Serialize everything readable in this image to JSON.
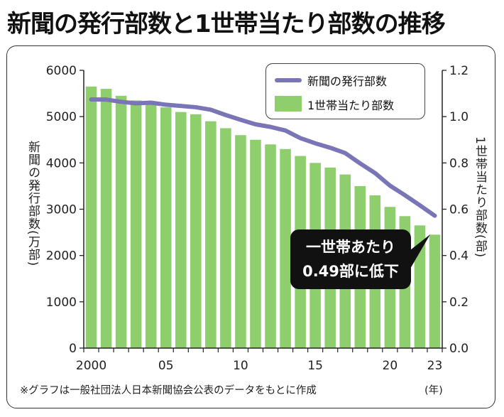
{
  "title": "新聞の発行部数と1世帯当たり部数の推移",
  "note": "※グラフは一般社団法人日本新聞協会公表のデータをもとに作成",
  "x_unit": "(年)",
  "left_axis_label": "新聞の発行部数(万部)",
  "right_axis_label": "1世帯当たり部数(部)",
  "callout": {
    "line1": "一世帯あたり",
    "line2": "0.49部に低下"
  },
  "legend": {
    "line_label": "新聞の発行部数",
    "bar_label": "1世帯当たり部数"
  },
  "colors": {
    "line": "#7a75b7",
    "bar": "#8fce6c"
  },
  "chart_data": {
    "type": "bar",
    "title": "新聞の発行部数と1世帯当たり部数の推移",
    "xlabel": "(年)",
    "x": [
      2000,
      2001,
      2002,
      2003,
      2004,
      2005,
      2006,
      2007,
      2008,
      2009,
      2010,
      2011,
      2012,
      2013,
      2014,
      2015,
      2016,
      2017,
      2018,
      2019,
      2020,
      2021,
      2022,
      2023
    ],
    "x_tick_labels": [
      {
        "year": 2000,
        "label": "2000"
      },
      {
        "year": 2005,
        "label": "05"
      },
      {
        "year": 2010,
        "label": "10"
      },
      {
        "year": 2015,
        "label": "15"
      },
      {
        "year": 2020,
        "label": "20"
      },
      {
        "year": 2023,
        "label": "23"
      }
    ],
    "y_left": {
      "label": "新聞の発行部数(万部)",
      "range": [
        0,
        6000
      ],
      "ticks": [
        0,
        1000,
        2000,
        3000,
        4000,
        5000,
        6000
      ]
    },
    "y_right": {
      "label": "1世帯当たり部数(部)",
      "range": [
        0,
        1.2
      ],
      "ticks": [
        "0.0",
        "0.2",
        "0.4",
        "0.6",
        "0.8",
        "1.0",
        "1.2"
      ]
    },
    "series": [
      {
        "name": "1世帯当たり部数",
        "type": "bar",
        "axis": "right",
        "values": [
          1.13,
          1.12,
          1.09,
          1.07,
          1.06,
          1.04,
          1.02,
          1.01,
          0.98,
          0.95,
          0.92,
          0.9,
          0.88,
          0.86,
          0.83,
          0.8,
          0.78,
          0.75,
          0.7,
          0.66,
          0.61,
          0.57,
          0.53,
          0.49
        ]
      },
      {
        "name": "新聞の発行部数",
        "type": "line",
        "axis": "left",
        "values": [
          5371,
          5368,
          5320,
          5287,
          5302,
          5257,
          5231,
          5203,
          5149,
          5035,
          4932,
          4834,
          4778,
          4700,
          4536,
          4424,
          4328,
          4213,
          3990,
          3781,
          3509,
          3303,
          3085,
          2859
        ]
      }
    ],
    "grid": false,
    "legend_position": "top-right"
  }
}
